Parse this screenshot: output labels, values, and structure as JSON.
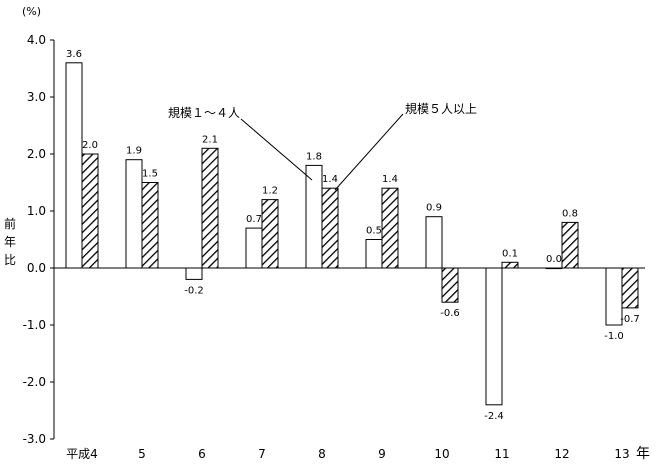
{
  "chart_data": {
    "type": "bar",
    "unit": "(%)",
    "ylabel": "前年比",
    "xlabel": "年",
    "categories": [
      "平成4",
      "5",
      "6",
      "7",
      "8",
      "9",
      "10",
      "11",
      "12",
      "13"
    ],
    "series": [
      {
        "name": "規模１～４人",
        "values": [
          3.6,
          1.9,
          -0.2,
          0.7,
          1.8,
          0.5,
          0.9,
          -2.4,
          0.0,
          -1.0
        ]
      },
      {
        "name": "規模５人以上",
        "values": [
          2.0,
          1.5,
          2.1,
          1.2,
          1.4,
          1.4,
          -0.6,
          0.1,
          0.8,
          -0.7
        ]
      }
    ],
    "data_labels": [
      [
        "3.6",
        "1.9",
        "-0.2",
        "0.7",
        "1.8",
        "0.5",
        "0.9",
        "-2.4",
        "0.0",
        "-1.0"
      ],
      [
        "2.0",
        "1.5",
        "2.1",
        "1.2",
        "1.4",
        "1.4",
        "-0.6",
        "0.1",
        "0.8",
        "-0.7"
      ]
    ],
    "ylim": [
      -3.0,
      4.0
    ],
    "yticks": [
      "4.0",
      "3.0",
      "2.0",
      "1.0",
      "0.0",
      "-1.0",
      "-2.0",
      "-3.0"
    ],
    "series_styles": [
      "white",
      "diagonal-hatch"
    ],
    "grid": false
  }
}
